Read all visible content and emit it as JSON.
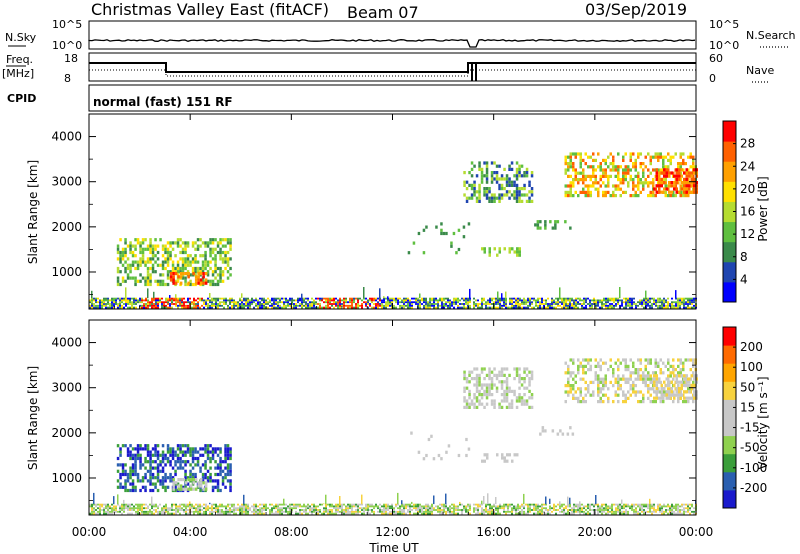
{
  "header": {
    "title": "Christmas Valley East (fitACF)",
    "beam": "Beam 07",
    "date": "03/Sep/2019"
  },
  "top_panels": {
    "nsky": {
      "left_label": "N.Sky",
      "right_label": "N.Search",
      "ticks_left": [
        "10^5",
        "10^0"
      ],
      "ticks_right": [
        "10^5",
        "10^0"
      ]
    },
    "freq": {
      "left_label_line1": "Freq.",
      "left_label_line2": "[MHz]",
      "right_label": "Nave",
      "ticks_left": [
        "18",
        "8"
      ],
      "ticks_right": [
        "60",
        "0"
      ]
    },
    "cpid": {
      "label": "CPID",
      "text": "normal (fast) 151 RF"
    }
  },
  "colors": {
    "power": [
      "#0000ff",
      "#1f45b0",
      "#3a8a4a",
      "#5fbf3f",
      "#b5dc30",
      "#ffe000",
      "#ffa000",
      "#ff6000",
      "#ff0000"
    ],
    "velocity": [
      "#ff0000",
      "#ff6a00",
      "#ffa500",
      "#f7d23e",
      "#c8c8c8",
      "#c8c8c8",
      "#8fd14f",
      "#3a9e3a",
      "#2a5fb0",
      "#1a1acc"
    ]
  },
  "chart_data": [
    {
      "type": "heatmap",
      "panel": "power",
      "title": "",
      "ylabel": "Slant Range [km]",
      "xlabel": "",
      "x_ticks": [
        "00:00",
        "04:00",
        "08:00",
        "12:00",
        "16:00",
        "20:00",
        "00:00"
      ],
      "y_ticks": [
        "1000",
        "2000",
        "3000",
        "4000"
      ],
      "ylim": [
        180,
        4500
      ],
      "xlim_hours": [
        0,
        24
      ],
      "colorbar": {
        "label": "Power [dB]",
        "ticks": [
          "4",
          "8",
          "12",
          "16",
          "20",
          "24",
          "28"
        ],
        "range": [
          0,
          30
        ]
      }
    },
    {
      "type": "heatmap",
      "panel": "velocity",
      "title": "",
      "ylabel": "Slant Range [km]",
      "xlabel": "Time UT",
      "x_ticks": [
        "00:00",
        "04:00",
        "08:00",
        "12:00",
        "16:00",
        "20:00",
        "00:00"
      ],
      "y_ticks": [
        "1000",
        "2000",
        "3000",
        "4000"
      ],
      "ylim": [
        180,
        4500
      ],
      "xlim_hours": [
        0,
        24
      ],
      "colorbar": {
        "label": "Velocity [m s⁻¹]",
        "ticks": [
          "200",
          "100",
          "50",
          "15",
          "-15",
          "-50",
          "-100",
          "-200"
        ],
        "range": [
          -250,
          250
        ]
      }
    }
  ]
}
